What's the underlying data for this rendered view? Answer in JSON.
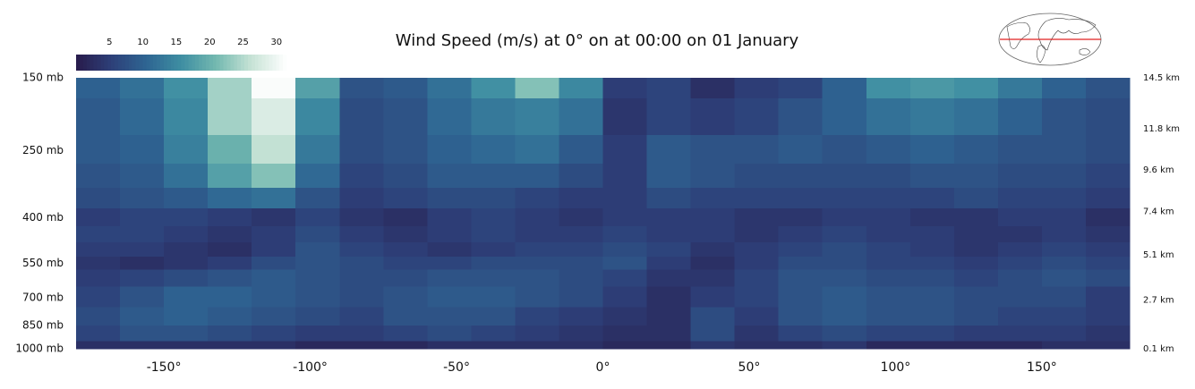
{
  "chart_data": {
    "type": "heatmap",
    "title": "Wind Speed (m/s) at 0° on at 00:00 on 01 January",
    "x": [
      -172.5,
      -157.5,
      -142.5,
      -127.5,
      -112.5,
      -97.5,
      -82.5,
      -67.5,
      -52.5,
      -37.5,
      -22.5,
      -7.5,
      7.5,
      22.5,
      37.5,
      52.5,
      67.5,
      82.5,
      97.5,
      112.5,
      127.5,
      142.5,
      157.5,
      172.5
    ],
    "y": [
      150,
      200,
      250,
      300,
      350,
      400,
      450,
      500,
      550,
      600,
      700,
      800,
      900,
      1000
    ],
    "values": [
      [
        10,
        12,
        16,
        24,
        31,
        18,
        8,
        9,
        12,
        16,
        22,
        15,
        5,
        6,
        3,
        5,
        6,
        10,
        16,
        17,
        16,
        13,
        10,
        8
      ],
      [
        9,
        11,
        15,
        24,
        28,
        15,
        7,
        8,
        11,
        13,
        14,
        12,
        4,
        6,
        5,
        6,
        8,
        10,
        12,
        13,
        12,
        10,
        8,
        7
      ],
      [
        9,
        10,
        14,
        20,
        26,
        13,
        7,
        8,
        10,
        11,
        12,
        9,
        5,
        9,
        8,
        8,
        9,
        8,
        9,
        10,
        9,
        8,
        8,
        7
      ],
      [
        8,
        9,
        12,
        18,
        22,
        11,
        6,
        7,
        9,
        9,
        9,
        7,
        5,
        9,
        8,
        7,
        7,
        7,
        7,
        8,
        8,
        7,
        7,
        6
      ],
      [
        7,
        8,
        9,
        11,
        12,
        8,
        5,
        6,
        7,
        7,
        6,
        5,
        5,
        7,
        6,
        6,
        6,
        6,
        6,
        6,
        7,
        6,
        6,
        5
      ],
      [
        5,
        6,
        6,
        5,
        4,
        6,
        4,
        3,
        5,
        6,
        5,
        4,
        5,
        5,
        5,
        4,
        4,
        5,
        5,
        4,
        4,
        5,
        5,
        3
      ],
      [
        6,
        6,
        5,
        4,
        5,
        7,
        5,
        4,
        5,
        6,
        5,
        5,
        6,
        5,
        5,
        4,
        5,
        6,
        5,
        5,
        4,
        4,
        5,
        4
      ],
      [
        5,
        5,
        4,
        3,
        5,
        8,
        6,
        5,
        4,
        5,
        6,
        6,
        7,
        6,
        4,
        5,
        6,
        7,
        6,
        5,
        4,
        5,
        6,
        5
      ],
      [
        4,
        3,
        4,
        5,
        7,
        8,
        7,
        6,
        6,
        7,
        7,
        7,
        8,
        5,
        3,
        5,
        7,
        7,
        6,
        6,
        5,
        6,
        7,
        6
      ],
      [
        5,
        6,
        7,
        8,
        9,
        8,
        7,
        7,
        8,
        8,
        8,
        7,
        6,
        4,
        4,
        6,
        8,
        8,
        7,
        7,
        6,
        7,
        8,
        7
      ],
      [
        6,
        8,
        10,
        10,
        9,
        8,
        7,
        8,
        9,
        9,
        8,
        7,
        5,
        3,
        5,
        6,
        8,
        9,
        8,
        8,
        7,
        7,
        7,
        5
      ],
      [
        7,
        9,
        10,
        9,
        8,
        7,
        6,
        8,
        8,
        8,
        6,
        5,
        4,
        3,
        7,
        5,
        8,
        9,
        8,
        8,
        7,
        6,
        6,
        5
      ],
      [
        6,
        8,
        8,
        7,
        6,
        5,
        5,
        6,
        7,
        6,
        5,
        4,
        3,
        3,
        7,
        4,
        6,
        7,
        6,
        6,
        5,
        5,
        5,
        4
      ],
      [
        3,
        3,
        3,
        3,
        3,
        2,
        2,
        2,
        3,
        3,
        3,
        3,
        2,
        2,
        4,
        3,
        3,
        4,
        2,
        2,
        2,
        2,
        3,
        3
      ]
    ],
    "xlim": [
      -180,
      180
    ],
    "xticks": [
      {
        "value": -150,
        "label": "-150°"
      },
      {
        "value": -100,
        "label": "-100°"
      },
      {
        "value": -50,
        "label": "-50°"
      },
      {
        "value": 0,
        "label": "0°"
      },
      {
        "value": 50,
        "label": "50°"
      },
      {
        "value": 100,
        "label": "100°"
      },
      {
        "value": 150,
        "label": "150°"
      }
    ],
    "ylim": [
      1000,
      150
    ],
    "ylog": true,
    "yticks": [
      {
        "value": 150,
        "label": "150 mb"
      },
      {
        "value": 250,
        "label": "250 mb"
      },
      {
        "value": 400,
        "label": "400 mb"
      },
      {
        "value": 550,
        "label": "550 mb"
      },
      {
        "value": 700,
        "label": "700 mb"
      },
      {
        "value": 850,
        "label": "850 mb"
      },
      {
        "value": 1000,
        "label": "1000 mb"
      }
    ],
    "y2lim": [
      0.1,
      14.5
    ],
    "y2ticks": [
      {
        "value": 14.5,
        "label": "14.5 km"
      },
      {
        "value": 11.8,
        "label": "11.8 km"
      },
      {
        "value": 9.6,
        "label": "9.6 km"
      },
      {
        "value": 7.4,
        "label": "7.4 km"
      },
      {
        "value": 5.1,
        "label": "5.1 km"
      },
      {
        "value": 2.7,
        "label": "2.7 km"
      },
      {
        "value": 0.1,
        "label": "0.1 km"
      }
    ],
    "clim": [
      0,
      31.5
    ],
    "cticks": [
      5,
      10,
      15,
      20,
      25,
      30
    ],
    "colorscale": [
      "#281b4b",
      "#2d3f78",
      "#2e6592",
      "#3e8ea2",
      "#74b9b0",
      "#c7e3d6",
      "#ffffff"
    ]
  }
}
